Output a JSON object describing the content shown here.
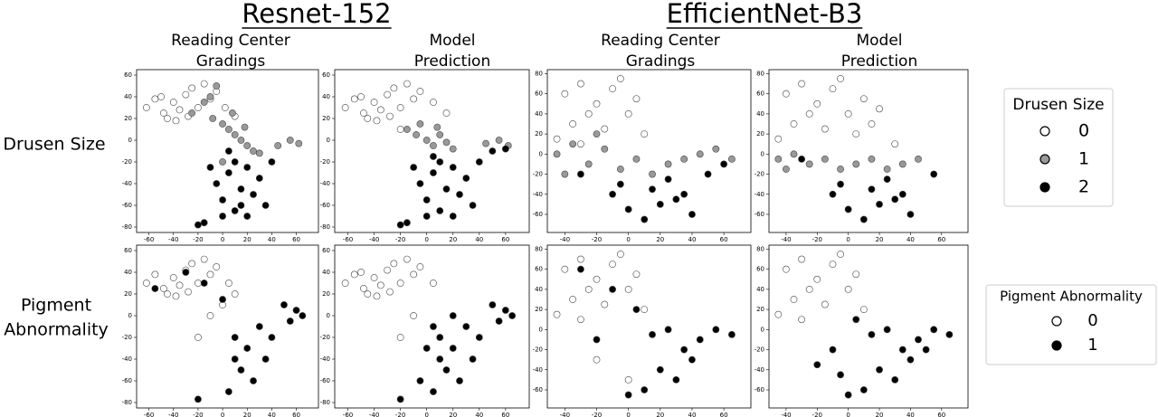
{
  "model_titles": [
    "Resnet-152",
    "EfficientNet-B3"
  ],
  "column_headers": [
    [
      "Reading Center",
      "Gradings"
    ],
    [
      "Model",
      "Prediction"
    ],
    [
      "Reading Center",
      "Gradings"
    ],
    [
      "Model",
      "Prediction"
    ]
  ],
  "row_labels": [
    [
      "Drusen Size"
    ],
    [
      "Pigment",
      "Abnormality"
    ]
  ],
  "legends": [
    {
      "title": "Drusen Size",
      "entries": [
        {
          "label": "0",
          "color": "#ffffff"
        },
        {
          "label": "1",
          "color": "#999999"
        },
        {
          "label": "2",
          "color": "#000000"
        }
      ]
    },
    {
      "title": "Pigment Abnormality",
      "entries": [
        {
          "label": "0",
          "color": "#ffffff"
        },
        {
          "label": "1",
          "color": "#000000"
        }
      ]
    }
  ],
  "chart_data": [
    {
      "type": "scatter",
      "xlim": [
        -70,
        78
      ],
      "ylim": [
        -85,
        65
      ],
      "xticks": [
        -60,
        -40,
        -20,
        0,
        20,
        40,
        60
      ],
      "yticks": [
        -80,
        -60,
        -40,
        -20,
        0,
        20,
        40,
        60
      ],
      "series": [
        {
          "name": "0",
          "color": "#ffffff",
          "x": [
            -62,
            -55,
            -48,
            -40,
            -35,
            -30,
            -25,
            -20,
            -15,
            -10,
            -5,
            -45,
            -38,
            -28,
            -50,
            2,
            10
          ],
          "values": [
            30,
            38,
            25,
            35,
            28,
            42,
            48,
            30,
            52,
            38,
            45,
            20,
            18,
            22,
            40,
            30,
            22
          ]
        },
        {
          "name": "1",
          "color": "#999999",
          "x": [
            -25,
            -15,
            -8,
            0,
            5,
            10,
            15,
            20,
            25,
            -5,
            8,
            18,
            45,
            55,
            62,
            30,
            -10,
            0
          ],
          "values": [
            25,
            35,
            20,
            15,
            10,
            5,
            0,
            -5,
            -10,
            50,
            25,
            12,
            -5,
            0,
            -3,
            -12,
            40,
            -20
          ]
        },
        {
          "name": "2",
          "color": "#000000",
          "x": [
            -10,
            -5,
            0,
            5,
            10,
            15,
            20,
            25,
            30,
            35,
            0,
            10,
            20,
            -20,
            -15,
            40,
            5,
            15
          ],
          "values": [
            -25,
            -40,
            -55,
            -30,
            -65,
            -45,
            -70,
            -50,
            -35,
            -60,
            -70,
            -20,
            -25,
            -78,
            -76,
            -20,
            -10,
            -60
          ]
        }
      ]
    },
    {
      "type": "scatter",
      "xlim": [
        -70,
        78
      ],
      "ylim": [
        -85,
        65
      ],
      "xticks": [
        -60,
        -40,
        -20,
        0,
        20,
        40,
        60
      ],
      "yticks": [
        -80,
        -60,
        -40,
        -20,
        0,
        20,
        40,
        60
      ],
      "series": [
        {
          "name": "0",
          "color": "#ffffff",
          "x": [
            -62,
            -55,
            -48,
            -40,
            -35,
            -30,
            -25,
            -20,
            -15,
            -10,
            -5,
            -45,
            -38,
            -28,
            -50,
            5,
            15,
            -20
          ],
          "values": [
            30,
            38,
            25,
            35,
            28,
            42,
            48,
            30,
            52,
            38,
            45,
            20,
            18,
            22,
            40,
            35,
            25,
            10
          ]
        },
        {
          "name": "1",
          "color": "#999999",
          "x": [
            -15,
            -8,
            0,
            5,
            10,
            15,
            20,
            45,
            55,
            62,
            -5,
            8
          ],
          "values": [
            10,
            5,
            0,
            -5,
            5,
            -2,
            -8,
            -3,
            0,
            -5,
            15,
            12
          ]
        },
        {
          "name": "2",
          "color": "#000000",
          "x": [
            -10,
            -5,
            0,
            5,
            10,
            15,
            20,
            25,
            30,
            35,
            0,
            10,
            20,
            -20,
            -15,
            40,
            50,
            60,
            5
          ],
          "values": [
            -25,
            -40,
            -55,
            -30,
            -65,
            -45,
            -70,
            -50,
            -35,
            -60,
            -70,
            -20,
            -25,
            -78,
            -76,
            -20,
            -10,
            -8,
            -15
          ]
        }
      ]
    },
    {
      "type": "scatter",
      "xlim": [
        -51,
        77
      ],
      "ylim": [
        -78,
        84
      ],
      "xticks": [
        -40,
        -20,
        0,
        20,
        40,
        60
      ],
      "yticks": [
        -60,
        -40,
        -20,
        0,
        20,
        40,
        60,
        80
      ],
      "series": [
        {
          "name": "0",
          "color": "#ffffff",
          "x": [
            -40,
            -30,
            -20,
            -10,
            0,
            5,
            -35,
            -25,
            -15,
            -5,
            10,
            -45,
            -30
          ],
          "values": [
            60,
            70,
            50,
            65,
            40,
            55,
            30,
            40,
            25,
            75,
            20,
            15,
            10
          ]
        },
        {
          "name": "1",
          "color": "#999999",
          "x": [
            -45,
            -35,
            -25,
            -15,
            -5,
            5,
            15,
            25,
            35,
            45,
            55,
            65,
            -40,
            -20
          ],
          "values": [
            0,
            10,
            -10,
            5,
            -15,
            -5,
            -20,
            -10,
            -5,
            0,
            5,
            -5,
            -20,
            20
          ]
        },
        {
          "name": "2",
          "color": "#000000",
          "x": [
            -10,
            0,
            10,
            20,
            30,
            40,
            -5,
            15,
            25,
            35,
            50,
            60,
            -30
          ],
          "values": [
            -40,
            -55,
            -65,
            -50,
            -45,
            -60,
            -30,
            -35,
            -25,
            -40,
            -20,
            -10,
            -20
          ]
        }
      ]
    },
    {
      "type": "scatter",
      "xlim": [
        -51,
        77
      ],
      "ylim": [
        -78,
        84
      ],
      "xticks": [
        -40,
        -20,
        0,
        20,
        40,
        60
      ],
      "yticks": [
        -60,
        -40,
        -20,
        0,
        20,
        40,
        60,
        80
      ],
      "series": [
        {
          "name": "0",
          "color": "#ffffff",
          "x": [
            -40,
            -30,
            -20,
            -10,
            0,
            10,
            20,
            -35,
            -25,
            -15,
            -5,
            5,
            15,
            30,
            -45
          ],
          "values": [
            60,
            70,
            50,
            65,
            40,
            55,
            45,
            30,
            40,
            25,
            75,
            20,
            30,
            10,
            15
          ]
        },
        {
          "name": "1",
          "color": "#999999",
          "x": [
            -45,
            -35,
            -25,
            -15,
            -5,
            5,
            15,
            25,
            35,
            45,
            -40
          ],
          "values": [
            -5,
            0,
            -10,
            -5,
            -15,
            -10,
            -5,
            -15,
            -10,
            -5,
            -15
          ]
        },
        {
          "name": "2",
          "color": "#000000",
          "x": [
            -10,
            0,
            10,
            20,
            30,
            40,
            -5,
            15,
            25,
            35,
            -30,
            55
          ],
          "values": [
            -40,
            -55,
            -65,
            -50,
            -45,
            -60,
            -30,
            -35,
            -25,
            -40,
            -5,
            -20
          ]
        }
      ]
    },
    {
      "type": "scatter",
      "xlim": [
        -70,
        78
      ],
      "ylim": [
        -85,
        65
      ],
      "xticks": [
        -60,
        -40,
        -20,
        0,
        20,
        40,
        60
      ],
      "yticks": [
        -80,
        -60,
        -40,
        -20,
        0,
        20,
        40,
        60
      ],
      "series": [
        {
          "name": "0",
          "color": "#ffffff",
          "x": [
            -62,
            -55,
            -48,
            -40,
            -35,
            -30,
            -25,
            -20,
            -15,
            -10,
            -5,
            -45,
            -38,
            -28,
            5,
            10,
            -10,
            -20,
            0
          ],
          "values": [
            30,
            38,
            25,
            35,
            28,
            42,
            48,
            30,
            52,
            38,
            45,
            20,
            18,
            22,
            30,
            20,
            0,
            -20,
            10
          ]
        },
        {
          "name": "1",
          "color": "#000000",
          "x": [
            -55,
            -30,
            -15,
            0,
            10,
            20,
            30,
            40,
            50,
            60,
            65,
            55,
            15,
            25,
            35,
            5,
            10,
            -20
          ],
          "values": [
            25,
            40,
            30,
            15,
            -20,
            -30,
            -10,
            -20,
            10,
            5,
            0,
            -5,
            -50,
            -60,
            -40,
            -70,
            -40,
            -77
          ]
        }
      ]
    },
    {
      "type": "scatter",
      "xlim": [
        -70,
        78
      ],
      "ylim": [
        -85,
        65
      ],
      "xticks": [
        -60,
        -40,
        -20,
        0,
        20,
        40,
        60
      ],
      "yticks": [
        -80,
        -60,
        -40,
        -20,
        0,
        20,
        40,
        60
      ],
      "series": [
        {
          "name": "0",
          "color": "#ffffff",
          "x": [
            -62,
            -55,
            -48,
            -40,
            -35,
            -30,
            -25,
            -20,
            -15,
            -10,
            -5,
            -45,
            -38,
            -28,
            -50,
            5,
            -10,
            -20
          ],
          "values": [
            30,
            38,
            25,
            35,
            28,
            42,
            48,
            30,
            52,
            38,
            45,
            20,
            18,
            22,
            40,
            30,
            0,
            -20
          ]
        },
        {
          "name": "1",
          "color": "#000000",
          "x": [
            5,
            10,
            20,
            30,
            40,
            50,
            60,
            65,
            55,
            15,
            25,
            35,
            5,
            10,
            -5,
            0,
            20,
            -20
          ],
          "values": [
            -10,
            -20,
            -30,
            -10,
            -20,
            10,
            5,
            0,
            -5,
            -50,
            -60,
            -40,
            -70,
            -40,
            -60,
            -30,
            0,
            -77
          ]
        }
      ]
    },
    {
      "type": "scatter",
      "xlim": [
        -51,
        77
      ],
      "ylim": [
        -78,
        84
      ],
      "xticks": [
        -40,
        -20,
        0,
        20,
        40,
        60
      ],
      "yticks": [
        -60,
        -40,
        -20,
        0,
        20,
        40,
        60,
        80
      ],
      "series": [
        {
          "name": "0",
          "color": "#ffffff",
          "x": [
            -40,
            -30,
            -20,
            -10,
            0,
            5,
            -35,
            -25,
            -15,
            -5,
            10,
            -45,
            -30,
            -20,
            0
          ],
          "values": [
            60,
            70,
            50,
            65,
            40,
            55,
            30,
            40,
            25,
            75,
            20,
            15,
            10,
            -30,
            -50
          ]
        },
        {
          "name": "1",
          "color": "#000000",
          "x": [
            -30,
            -10,
            5,
            15,
            25,
            35,
            45,
            55,
            65,
            20,
            30,
            40,
            0,
            -20,
            10
          ],
          "values": [
            60,
            40,
            20,
            -5,
            0,
            -20,
            -10,
            0,
            -5,
            -40,
            -50,
            -30,
            -65,
            -10,
            -60
          ]
        }
      ]
    },
    {
      "type": "scatter",
      "xlim": [
        -51,
        77
      ],
      "ylim": [
        -78,
        84
      ],
      "xticks": [
        -40,
        -20,
        0,
        20,
        40,
        60
      ],
      "yticks": [
        -60,
        -40,
        -20,
        0,
        20,
        40,
        60,
        80
      ],
      "series": [
        {
          "name": "0",
          "color": "#ffffff",
          "x": [
            -40,
            -30,
            -20,
            -10,
            0,
            5,
            -35,
            -25,
            -15,
            -5,
            10,
            -45,
            -30
          ],
          "values": [
            60,
            70,
            50,
            65,
            40,
            55,
            30,
            40,
            25,
            75,
            20,
            15,
            10
          ]
        },
        {
          "name": "1",
          "color": "#000000",
          "x": [
            -10,
            5,
            15,
            25,
            35,
            45,
            55,
            65,
            20,
            30,
            40,
            0,
            -20,
            10,
            -5,
            50
          ],
          "values": [
            -20,
            10,
            -5,
            0,
            -20,
            -10,
            0,
            -5,
            -40,
            -50,
            -30,
            -65,
            -35,
            -60,
            -45,
            -20
          ]
        }
      ]
    }
  ]
}
